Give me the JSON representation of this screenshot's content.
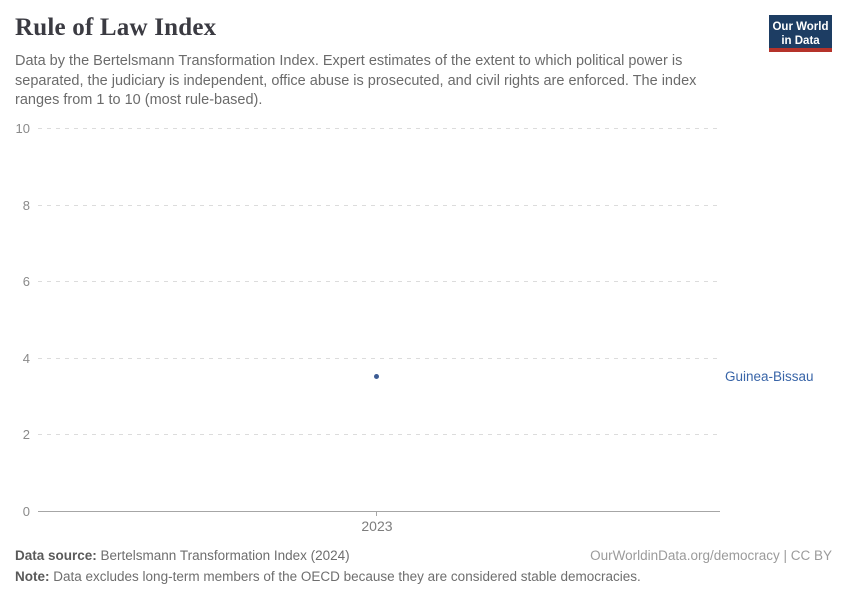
{
  "header": {
    "title": "Rule of Law Index",
    "subtitle": "Data by the Bertelsmann Transformation Index. Expert estimates of the extent to which political power is separated, the judiciary is independent, office abuse is prosecuted, and civil rights are enforced. The index ranges from 1 to 10 (most rule-based).",
    "logo": {
      "line1": "Our World",
      "line2": "in Data",
      "bg_color": "#1d3d63",
      "accent_color": "#b5332a"
    }
  },
  "chart_data": {
    "type": "scatter",
    "title": "Rule of Law Index",
    "x": [
      2023
    ],
    "xticks": [
      "2023"
    ],
    "series": [
      {
        "name": "Guinea-Bissau",
        "values": [
          3.5
        ],
        "color": "#3d5c94",
        "label_color": "#3965a8"
      }
    ],
    "ylim": [
      0,
      10
    ],
    "yticks": [
      0,
      2,
      4,
      6,
      8,
      10
    ],
    "grid": "horizontal dashed",
    "legend_position": "entity label right of plot"
  },
  "footer": {
    "data_source_label": "Data source:",
    "data_source_value": " Bertelsmann Transformation Index (2024)",
    "attribution": "OurWorldinData.org/democracy | CC BY",
    "note_label": "Note:",
    "note_value": " Data excludes long-term members of the OECD because they are considered stable democracies."
  }
}
